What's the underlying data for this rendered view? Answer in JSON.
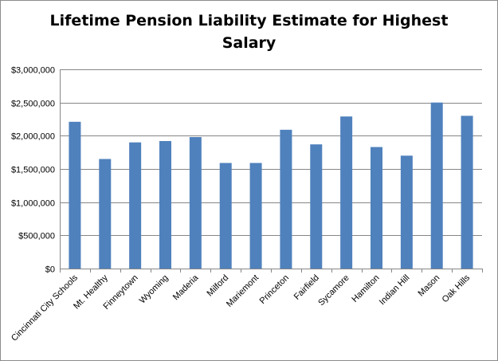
{
  "chart_data": {
    "type": "bar",
    "title": "Lifetime Pension Liability Estimate for Highest Salary",
    "title_lines": [
      "Lifetime Pension Liability Estimate for Highest",
      "Salary"
    ],
    "xlabel": "",
    "ylabel": "",
    "categories": [
      "Cincinnati City Schools",
      "Mt. Healthy",
      "Finneytown",
      "Wyoming",
      "Maderia",
      "Milford",
      "Mariemont",
      "Princeton",
      "Fairfield",
      "Sycamore",
      "Hamilton",
      "Indian Hill",
      "Mason",
      "Oak Hills"
    ],
    "values": [
      2210000,
      1650000,
      1900000,
      1920000,
      1980000,
      1590000,
      1590000,
      2090000,
      1870000,
      2290000,
      1830000,
      1700000,
      2500000,
      2300000
    ],
    "ylim": [
      0,
      3000000
    ],
    "yticks": [
      0,
      500000,
      1000000,
      1500000,
      2000000,
      2500000,
      3000000
    ],
    "ytick_labels": [
      "$0",
      "$500,000",
      "$1,000,000",
      "$1,500,000",
      "$2,000,000",
      "$2,500,000",
      "$3,000,000"
    ],
    "bar_color": "#4f81bd",
    "grid": true,
    "legend": "none"
  }
}
